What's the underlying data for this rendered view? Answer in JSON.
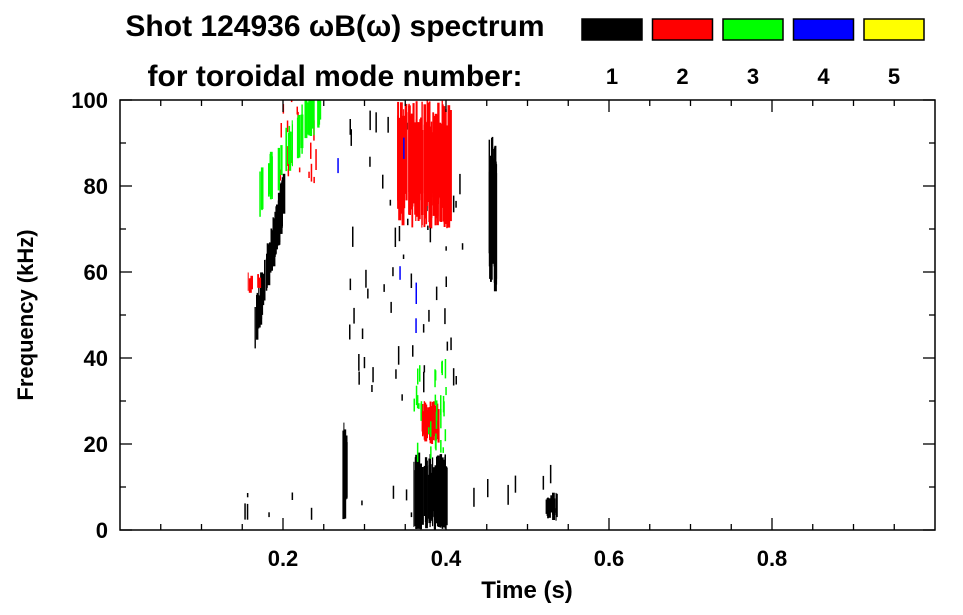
{
  "chart_data": {
    "type": "heatmap",
    "title": "Shot 124936 ωB(ω) spectrum",
    "subtitle": "for toroidal mode number:",
    "xlabel": "Time (s)",
    "ylabel": "Frequency (kHz)",
    "xlim": [
      0.0,
      1.0
    ],
    "ylim": [
      0,
      100
    ],
    "xticks": [
      0.2,
      0.4,
      0.6,
      0.8
    ],
    "xtick_labels": [
      "0.2",
      "0.4",
      "0.6",
      "0.8"
    ],
    "yticks": [
      0,
      20,
      40,
      60,
      80,
      100
    ],
    "ytick_labels": [
      "0",
      "20",
      "40",
      "60",
      "80",
      "100"
    ],
    "grid": false,
    "legend_position": "top-right",
    "legend": [
      {
        "mode": "1",
        "color": "#000000"
      },
      {
        "mode": "2",
        "color": "#ff0000"
      },
      {
        "mode": "3",
        "color": "#00ff00"
      },
      {
        "mode": "4",
        "color": "#0000ff"
      },
      {
        "mode": "5",
        "color": "#ffff00"
      }
    ],
    "features": [
      {
        "mode": 1,
        "t": [
          0.165,
          0.2
        ],
        "f": [
          48,
          78
        ],
        "kind": "chirp",
        "density": 60
      },
      {
        "mode": 1,
        "t": [
          0.272,
          0.277
        ],
        "f": [
          2,
          25
        ],
        "kind": "block",
        "density": 8
      },
      {
        "mode": 1,
        "t": [
          0.36,
          0.4
        ],
        "f": [
          0,
          18
        ],
        "kind": "block",
        "density": 70
      },
      {
        "mode": 1,
        "t": [
          0.452,
          0.462
        ],
        "f": [
          55,
          92
        ],
        "kind": "block",
        "density": 20
      },
      {
        "mode": 1,
        "t": [
          0.522,
          0.535
        ],
        "f": [
          2,
          9
        ],
        "kind": "block",
        "density": 10
      },
      {
        "mode": 1,
        "t": [
          0.28,
          0.42
        ],
        "f": [
          30,
          95
        ],
        "kind": "scatter",
        "density": 60
      },
      {
        "mode": 1,
        "t": [
          0.15,
          0.54
        ],
        "f": [
          2,
          12
        ],
        "kind": "scatter",
        "density": 20
      },
      {
        "mode": 2,
        "t": [
          0.34,
          0.405
        ],
        "f": [
          70,
          100
        ],
        "kind": "block",
        "density": 90
      },
      {
        "mode": 2,
        "t": [
          0.37,
          0.39
        ],
        "f": [
          20,
          30
        ],
        "kind": "block",
        "density": 25
      },
      {
        "mode": 2,
        "t": [
          0.155,
          0.17
        ],
        "f": [
          55,
          60
        ],
        "kind": "block",
        "density": 6
      },
      {
        "mode": 2,
        "t": [
          0.195,
          0.25
        ],
        "f": [
          80,
          100
        ],
        "kind": "scatter",
        "density": 25
      },
      {
        "mode": 3,
        "t": [
          0.17,
          0.245
        ],
        "f": [
          78,
          100
        ],
        "kind": "chirp",
        "density": 35
      },
      {
        "mode": 3,
        "t": [
          0.36,
          0.4
        ],
        "f": [
          15,
          38
        ],
        "kind": "scatter",
        "density": 30
      },
      {
        "mode": 4,
        "t": [
          0.235,
          0.385
        ],
        "f": [
          44,
          100
        ],
        "kind": "scatter",
        "density": 5
      }
    ]
  }
}
